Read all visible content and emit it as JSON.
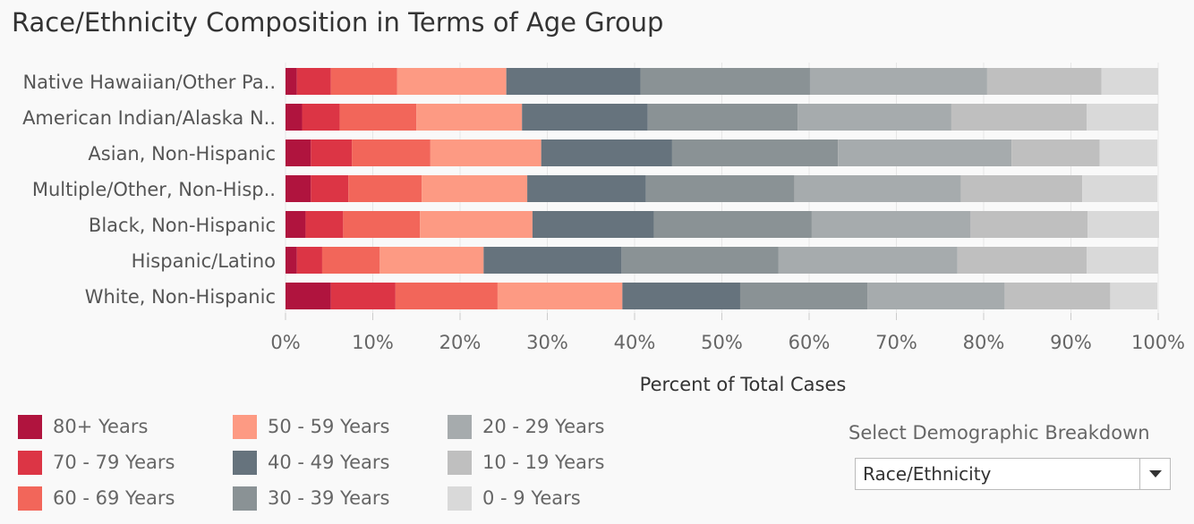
{
  "title": "Race/Ethnicity Composition in Terms of Age Group",
  "selector": {
    "label": "Select Demographic Breakdown",
    "value": "Race/Ethnicity"
  },
  "chart_data": {
    "type": "bar",
    "orientation": "horizontal",
    "stacked": true,
    "xlabel": "Percent of Total Cases",
    "xlim": [
      0,
      100
    ],
    "xticks": [
      "0%",
      "10%",
      "20%",
      "30%",
      "40%",
      "50%",
      "60%",
      "70%",
      "80%",
      "90%",
      "100%"
    ],
    "categories": [
      "Native Hawaiian/Other Pa..",
      "American Indian/Alaska N..",
      "Asian, Non-Hispanic",
      "Multiple/Other, Non-Hisp..",
      "Black, Non-Hispanic",
      "Hispanic/Latino",
      "White, Non-Hispanic"
    ],
    "series": [
      {
        "name": "80+ Years",
        "color": "#b0143e",
        "values": [
          1.3,
          1.9,
          2.9,
          2.9,
          2.3,
          1.3,
          5.2
        ]
      },
      {
        "name": "70 - 79 Years",
        "color": "#dc3545",
        "values": [
          3.9,
          4.3,
          4.7,
          4.3,
          4.3,
          2.9,
          7.4
        ]
      },
      {
        "name": "60 - 69 Years",
        "color": "#f2665a",
        "values": [
          7.6,
          8.8,
          9.0,
          8.4,
          8.8,
          6.6,
          11.7
        ]
      },
      {
        "name": "50 - 59 Years",
        "color": "#fd9a83",
        "values": [
          12.5,
          12.1,
          12.7,
          12.1,
          12.9,
          11.9,
          14.3
        ]
      },
      {
        "name": "40 - 49 Years",
        "color": "#66737d",
        "values": [
          15.4,
          14.4,
          15.0,
          13.6,
          13.9,
          15.8,
          13.5
        ]
      },
      {
        "name": "30 - 39 Years",
        "color": "#8a9295",
        "values": [
          19.4,
          17.2,
          19.0,
          17.0,
          18.1,
          18.0,
          14.6
        ]
      },
      {
        "name": "20 - 29 Years",
        "color": "#a6abad",
        "values": [
          20.3,
          17.6,
          19.9,
          19.1,
          18.2,
          20.5,
          15.7
        ]
      },
      {
        "name": "10 - 19 Years",
        "color": "#bfbfbf",
        "values": [
          13.1,
          15.5,
          10.1,
          13.9,
          13.4,
          14.8,
          12.1
        ]
      },
      {
        "name": "0 - 9 Years",
        "color": "#d9d9d9",
        "values": [
          6.5,
          8.2,
          6.6,
          8.6,
          8.2,
          8.2,
          5.4
        ]
      }
    ]
  }
}
